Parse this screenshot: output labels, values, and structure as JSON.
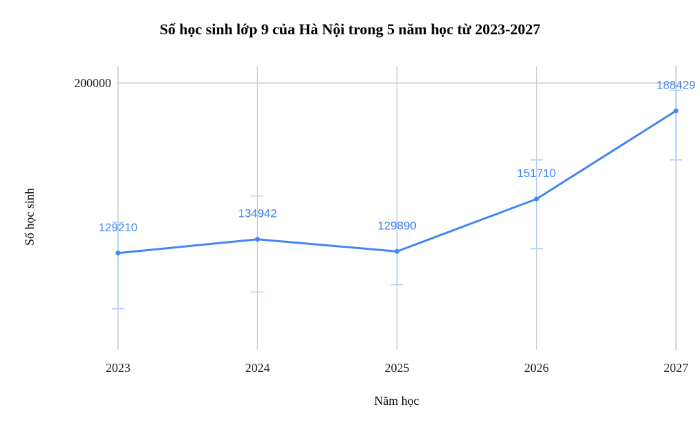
{
  "chart_data": {
    "type": "line",
    "title": "Số học sinh lớp 9 của Hà Nội trong 5 năm học từ 2023-2027",
    "xlabel": "Năm học",
    "ylabel": "Số học sinh",
    "categories": [
      "2023",
      "2024",
      "2025",
      "2026",
      "2027"
    ],
    "series": [
      {
        "values": [
          129210,
          134942,
          129890,
          151710,
          188429
        ],
        "error_low": [
          106000,
          113000,
          116000,
          131000,
          168000
        ],
        "error_high": [
          142000,
          153000,
          142000,
          168000,
          197000
        ]
      }
    ],
    "y_ticks": [
      "200000"
    ],
    "ylim": [
      110000,
      200000
    ],
    "grid": true,
    "line_color": "#4285f4",
    "error_bar_color": "#a9c8fb",
    "grid_color": "#cccccc"
  }
}
